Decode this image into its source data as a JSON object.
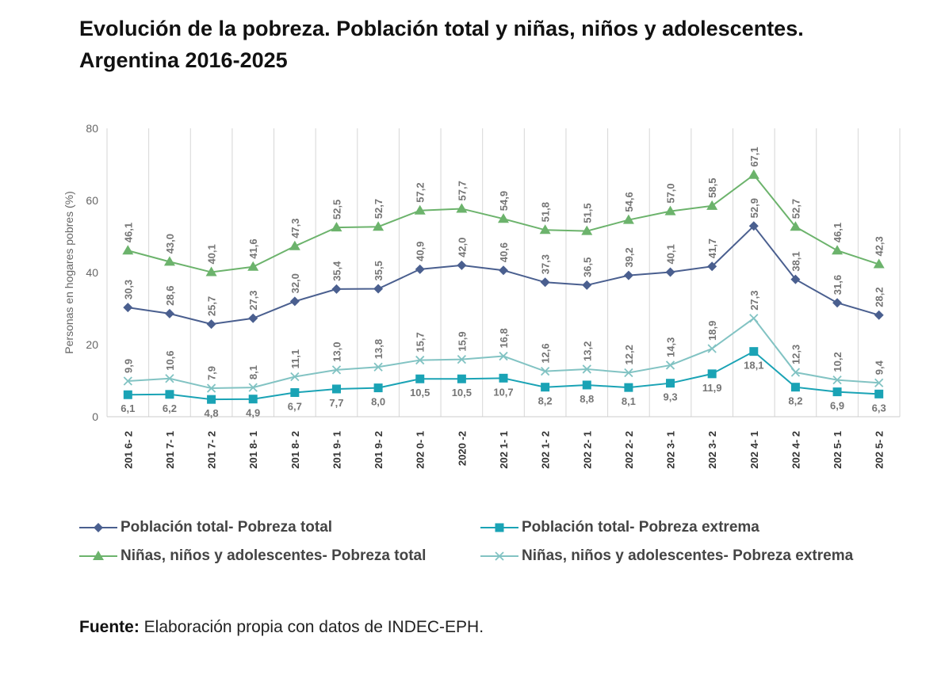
{
  "title_line1": "Evolución de la pobreza. Población total y niñas, niños y adolescentes.",
  "title_line2": "Argentina 2016-2025",
  "source_label": "Fuente:",
  "source_text": " Elaboración propia con datos de INDEC-EPH.",
  "chart_data": {
    "type": "line",
    "ylabel": "Personas en hogares pobres (%)",
    "ylim": [
      0,
      80
    ],
    "yticks": [
      0,
      20,
      40,
      60,
      80
    ],
    "grid": "vertical",
    "legend_position": "bottom",
    "categories": [
      "201 6- 2",
      "201 7- 1",
      "201 7- 2",
      "201 8- 1",
      "201 8- 2",
      "201 9- 1",
      "201 9- 2",
      "202 0- 1",
      "2020 -2",
      "202 1- 1",
      "202 1- 2",
      "202 2- 1",
      "202 2- 2",
      "202 3- 1",
      "202 3- 2",
      "202 4- 1",
      "202 4- 2",
      "202 5- 1",
      "202 5- 2"
    ],
    "series": [
      {
        "name": "Población total- Pobreza total",
        "color": "#4a5f8f",
        "marker": "diamond",
        "labels": "above",
        "values": [
          30.3,
          28.6,
          25.7,
          27.3,
          32.0,
          35.4,
          35.5,
          40.9,
          42.0,
          40.6,
          37.3,
          36.5,
          39.2,
          40.1,
          41.7,
          52.9,
          38.1,
          31.6,
          28.2
        ],
        "value_labels": [
          "30,3",
          "28,6",
          "25,7",
          "27,3",
          "32,0",
          "35,4",
          "35,5",
          "40,9",
          "42,0",
          "40,6",
          "37,3",
          "36,5",
          "39,2",
          "40,1",
          "41,7",
          "52,9",
          "38,1",
          "31,6",
          "28,2"
        ]
      },
      {
        "name": "Población total- Pobreza extrema",
        "color": "#1aa3b5",
        "marker": "square",
        "labels": "below",
        "values": [
          6.1,
          6.2,
          4.8,
          4.9,
          6.7,
          7.7,
          8.0,
          10.5,
          10.5,
          10.7,
          8.2,
          8.8,
          8.1,
          9.3,
          11.9,
          18.1,
          8.2,
          6.9,
          6.3
        ],
        "value_labels": [
          "6,1",
          "6,2",
          "4,8",
          "4,9",
          "6,7",
          "7,7",
          "8,0",
          "10,5",
          "10,5",
          "10,7",
          "8,2",
          "8,8",
          "8,1",
          "9,3",
          "11,9",
          "18,1",
          "8,2",
          "6,9",
          "6,3"
        ]
      },
      {
        "name": "Niñas, niños y adolescentes- Pobreza total",
        "color": "#6cb36c",
        "marker": "triangle",
        "labels": "above",
        "values": [
          46.1,
          43.0,
          40.1,
          41.6,
          47.3,
          52.5,
          52.7,
          57.2,
          57.7,
          54.9,
          51.8,
          51.5,
          54.6,
          57.0,
          58.5,
          67.1,
          52.7,
          46.1,
          42.3
        ],
        "value_labels": [
          "46,1",
          "43,0",
          "40,1",
          "41,6",
          "47,3",
          "52,5",
          "52,7",
          "57,2",
          "57,7",
          "54,9",
          "51,8",
          "51,5",
          "54,6",
          "57,0",
          "58,5",
          "67,1",
          "52,7",
          "46,1",
          "42,3"
        ]
      },
      {
        "name": "Niñas, niños y adolescentes- Pobreza extrema",
        "color": "#82c3c3",
        "marker": "x",
        "labels": "above",
        "values": [
          9.9,
          10.6,
          7.9,
          8.1,
          11.1,
          13.0,
          13.8,
          15.7,
          15.9,
          16.8,
          12.6,
          13.2,
          12.2,
          14.3,
          18.9,
          27.3,
          12.3,
          10.2,
          9.4
        ],
        "value_labels": [
          "9,9",
          "10,6",
          "7,9",
          "8,1",
          "11,1",
          "13,0",
          "13,8",
          "15,7",
          "15,9",
          "16,8",
          "12,6",
          "13,2",
          "12,2",
          "14,3",
          "18,9",
          "27,3",
          "12,3",
          "10,2",
          "9,4"
        ]
      }
    ]
  }
}
